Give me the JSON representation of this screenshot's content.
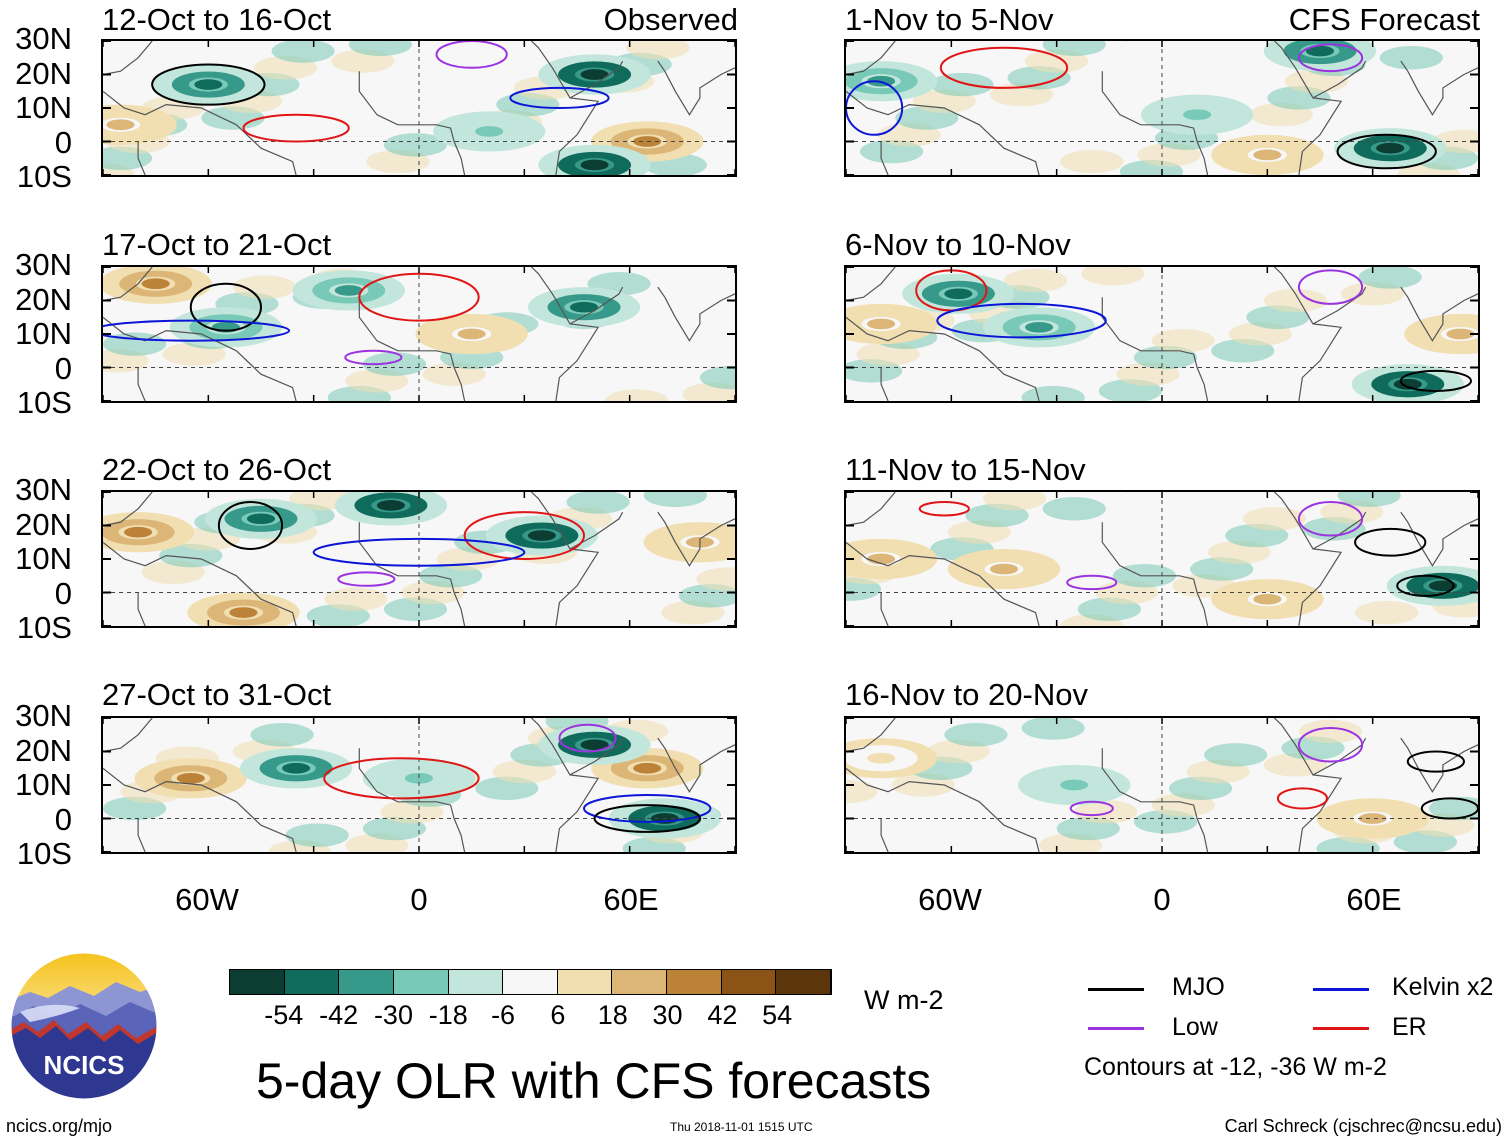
{
  "chart_data": {
    "type": "heatmap",
    "title": "5-day OLR with CFS forecasts",
    "variable": "OLR anomaly",
    "units": "W m-2",
    "section_labels": [
      "Observed",
      "CFS Forecast"
    ],
    "lat_ticks": [
      "30N",
      "20N",
      "10N",
      "0",
      "10S"
    ],
    "lon_ticks": [
      "60W",
      "0",
      "60E"
    ],
    "lat_range": [
      -10,
      30
    ],
    "lon_range": [
      -90,
      90
    ],
    "panels": [
      {
        "label": "12-Oct to 16-Oct",
        "section": "Observed",
        "features": [
          {
            "kind": "fill",
            "lon": 50,
            "lat": 20,
            "value": -54
          },
          {
            "kind": "fill",
            "lon": -60,
            "lat": 17,
            "value": -42
          },
          {
            "kind": "fill",
            "lon": 65,
            "lat": 0,
            "value": 42
          },
          {
            "kind": "fill",
            "lon": 50,
            "lat": -7,
            "value": -54
          },
          {
            "kind": "fill",
            "lon": -85,
            "lat": 5,
            "value": 30
          },
          {
            "kind": "fill",
            "lon": 20,
            "lat": 3,
            "value": -18
          },
          {
            "kind": "contour",
            "type": "MJO",
            "lon": -60,
            "lat": 17,
            "rx": 16,
            "ry": 6
          },
          {
            "kind": "contour",
            "type": "ER",
            "lon": -35,
            "lat": 4,
            "rx": 15,
            "ry": 4
          },
          {
            "kind": "contour",
            "type": "Low",
            "lon": 15,
            "lat": 26,
            "rx": 10,
            "ry": 4
          },
          {
            "kind": "contour",
            "type": "Kelvin x2",
            "lon": 40,
            "lat": 13,
            "rx": 14,
            "ry": 3
          }
        ]
      },
      {
        "label": "1-Nov to 5-Nov",
        "section": "CFS Forecast",
        "features": [
          {
            "kind": "fill",
            "lon": 65,
            "lat": -2,
            "value": -54
          },
          {
            "kind": "fill",
            "lon": 45,
            "lat": 27,
            "value": -42
          },
          {
            "kind": "fill",
            "lon": -80,
            "lat": 18,
            "value": -30
          },
          {
            "kind": "fill",
            "lon": 10,
            "lat": 8,
            "value": -18
          },
          {
            "kind": "fill",
            "lon": 30,
            "lat": -4,
            "value": 30
          },
          {
            "kind": "contour",
            "type": "MJO",
            "lon": 64,
            "lat": -3,
            "rx": 14,
            "ry": 5
          },
          {
            "kind": "contour",
            "type": "ER",
            "lon": -45,
            "lat": 22,
            "rx": 18,
            "ry": 6
          },
          {
            "kind": "contour",
            "type": "Low",
            "lon": 48,
            "lat": 25,
            "rx": 9,
            "ry": 4
          },
          {
            "kind": "contour",
            "type": "Kelvin x2",
            "lon": -82,
            "lat": 10,
            "rx": 8,
            "ry": 8
          }
        ]
      },
      {
        "label": "17-Oct to 21-Oct",
        "section": "Observed",
        "features": [
          {
            "kind": "fill",
            "lon": -75,
            "lat": 25,
            "value": 42
          },
          {
            "kind": "fill",
            "lon": 47,
            "lat": 18,
            "value": -42
          },
          {
            "kind": "fill",
            "lon": -20,
            "lat": 23,
            "value": -30
          },
          {
            "kind": "fill",
            "lon": 15,
            "lat": 10,
            "value": 30
          },
          {
            "kind": "fill",
            "lon": -55,
            "lat": 12,
            "value": -30
          },
          {
            "kind": "contour",
            "type": "MJO",
            "lon": -55,
            "lat": 18,
            "rx": 10,
            "ry": 7
          },
          {
            "kind": "contour",
            "type": "ER",
            "lon": 0,
            "lat": 21,
            "rx": 17,
            "ry": 7
          },
          {
            "kind": "contour",
            "type": "Kelvin x2",
            "lon": -65,
            "lat": 11,
            "rx": 28,
            "ry": 3
          },
          {
            "kind": "contour",
            "type": "Low",
            "lon": -13,
            "lat": 3,
            "rx": 8,
            "ry": 2
          }
        ]
      },
      {
        "label": "6-Nov to 10-Nov",
        "section": "CFS Forecast",
        "features": [
          {
            "kind": "fill",
            "lon": -58,
            "lat": 22,
            "value": -42
          },
          {
            "kind": "fill",
            "lon": -35,
            "lat": 12,
            "value": -30
          },
          {
            "kind": "fill",
            "lon": 70,
            "lat": -5,
            "value": -54
          },
          {
            "kind": "fill",
            "lon": -80,
            "lat": 13,
            "value": 30
          },
          {
            "kind": "fill",
            "lon": 85,
            "lat": 10,
            "value": 30
          },
          {
            "kind": "contour",
            "type": "ER",
            "lon": -60,
            "lat": 23,
            "rx": 10,
            "ry": 6
          },
          {
            "kind": "contour",
            "type": "Kelvin x2",
            "lon": -40,
            "lat": 14,
            "rx": 24,
            "ry": 5
          },
          {
            "kind": "contour",
            "type": "Low",
            "lon": 48,
            "lat": 24,
            "rx": 9,
            "ry": 5
          },
          {
            "kind": "contour",
            "type": "MJO",
            "lon": 78,
            "lat": -4,
            "rx": 10,
            "ry": 3
          }
        ]
      },
      {
        "label": "22-Oct to 26-Oct",
        "section": "Observed",
        "features": [
          {
            "kind": "fill",
            "lon": -80,
            "lat": 18,
            "value": 42
          },
          {
            "kind": "fill",
            "lon": 35,
            "lat": 17,
            "value": -54
          },
          {
            "kind": "fill",
            "lon": -8,
            "lat": 26,
            "value": -54
          },
          {
            "kind": "fill",
            "lon": -45,
            "lat": 22,
            "value": -42
          },
          {
            "kind": "fill",
            "lon": -50,
            "lat": -6,
            "value": 42
          },
          {
            "kind": "fill",
            "lon": 80,
            "lat": 15,
            "value": 30
          },
          {
            "kind": "contour",
            "type": "MJO",
            "lon": -48,
            "lat": 20,
            "rx": 9,
            "ry": 7
          },
          {
            "kind": "contour",
            "type": "ER",
            "lon": 30,
            "lat": 17,
            "rx": 17,
            "ry": 7
          },
          {
            "kind": "contour",
            "type": "Kelvin x2",
            "lon": 0,
            "lat": 12,
            "rx": 30,
            "ry": 4
          },
          {
            "kind": "contour",
            "type": "Low",
            "lon": -15,
            "lat": 4,
            "rx": 8,
            "ry": 2
          }
        ]
      },
      {
        "label": "11-Nov to 15-Nov",
        "section": "CFS Forecast",
        "features": [
          {
            "kind": "fill",
            "lon": -45,
            "lat": 7,
            "value": 30
          },
          {
            "kind": "fill",
            "lon": 80,
            "lat": 2,
            "value": -54
          },
          {
            "kind": "fill",
            "lon": -80,
            "lat": 10,
            "value": 30
          },
          {
            "kind": "fill",
            "lon": 30,
            "lat": -2,
            "value": 30
          },
          {
            "kind": "contour",
            "type": "MJO",
            "lon": 75,
            "lat": 2,
            "rx": 8,
            "ry": 3
          },
          {
            "kind": "contour",
            "type": "MJO",
            "lon": 65,
            "lat": 15,
            "rx": 10,
            "ry": 4
          },
          {
            "kind": "contour",
            "type": "ER",
            "lon": -62,
            "lat": 25,
            "rx": 7,
            "ry": 2
          },
          {
            "kind": "contour",
            "type": "Low",
            "lon": 48,
            "lat": 22,
            "rx": 9,
            "ry": 5
          },
          {
            "kind": "contour",
            "type": "Low",
            "lon": -20,
            "lat": 3,
            "rx": 7,
            "ry": 2
          }
        ]
      },
      {
        "label": "27-Oct to 31-Oct",
        "section": "Observed",
        "features": [
          {
            "kind": "fill",
            "lon": -65,
            "lat": 12,
            "value": 42
          },
          {
            "kind": "fill",
            "lon": 65,
            "lat": 15,
            "value": 42
          },
          {
            "kind": "fill",
            "lon": -35,
            "lat": 15,
            "value": -42
          },
          {
            "kind": "fill",
            "lon": 50,
            "lat": 22,
            "value": -54
          },
          {
            "kind": "fill",
            "lon": 70,
            "lat": 0,
            "value": -54
          },
          {
            "kind": "fill",
            "lon": 0,
            "lat": 12,
            "value": -18
          },
          {
            "kind": "contour",
            "type": "ER",
            "lon": -5,
            "lat": 12,
            "rx": 22,
            "ry": 6
          },
          {
            "kind": "contour",
            "type": "Kelvin x2",
            "lon": 65,
            "lat": 3,
            "rx": 18,
            "ry": 4
          },
          {
            "kind": "contour",
            "type": "MJO",
            "lon": 65,
            "lat": 0,
            "rx": 15,
            "ry": 4
          },
          {
            "kind": "contour",
            "type": "Low",
            "lon": 48,
            "lat": 24,
            "rx": 8,
            "ry": 4
          }
        ]
      },
      {
        "label": "16-Nov to 20-Nov",
        "section": "CFS Forecast",
        "features": [
          {
            "kind": "fill",
            "lon": -25,
            "lat": 10,
            "value": -18
          },
          {
            "kind": "fill",
            "lon": 60,
            "lat": 0,
            "value": 30
          },
          {
            "kind": "fill",
            "lon": -80,
            "lat": 18,
            "value": 18
          },
          {
            "kind": "contour",
            "type": "MJO",
            "lon": 78,
            "lat": 17,
            "rx": 8,
            "ry": 3
          },
          {
            "kind": "contour",
            "type": "MJO",
            "lon": 82,
            "lat": 3,
            "rx": 8,
            "ry": 3
          },
          {
            "kind": "contour",
            "type": "ER",
            "lon": 40,
            "lat": 6,
            "rx": 7,
            "ry": 3
          },
          {
            "kind": "contour",
            "type": "Low",
            "lon": 48,
            "lat": 22,
            "rx": 9,
            "ry": 5
          },
          {
            "kind": "contour",
            "type": "Low",
            "lon": -20,
            "lat": 3,
            "rx": 6,
            "ry": 2
          }
        ]
      }
    ],
    "colorbar": {
      "values": [
        "-54",
        "-42",
        "-30",
        "-18",
        "-6",
        "6",
        "18",
        "30",
        "42",
        "54"
      ],
      "colors": [
        "#0b3d33",
        "#0f6b5c",
        "#36998a",
        "#78c9b7",
        "#c3e6dc",
        "#f7f7f7",
        "#f1dfb2",
        "#dcb677",
        "#bc8238",
        "#8c5317",
        "#5b360c"
      ],
      "units": "W m-2"
    },
    "legend": [
      {
        "label": "MJO",
        "color": "#000000"
      },
      {
        "label": "Kelvin x2",
        "color": "#0b16d6"
      },
      {
        "label": "Low",
        "color": "#9b34e0"
      },
      {
        "label": "ER",
        "color": "#e01515"
      }
    ],
    "contour_note": "Contours at -12, -36 W m-2"
  },
  "footer": {
    "left": "ncics.org/mjo",
    "mid": "Thu 2018-11-01 1515 UTC",
    "right": "Carl Schreck (cjschrec@ncsu.edu)"
  },
  "logo": {
    "text": "NCICS"
  }
}
